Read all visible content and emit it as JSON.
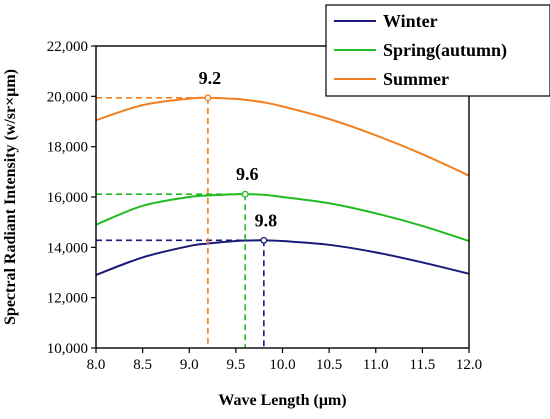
{
  "chart_data": {
    "type": "line",
    "title": "",
    "xlabel": "Wave Length (μm)",
    "ylabel": "Spectral Radiant Intensity (w/sr×μm)",
    "xlim": [
      8.0,
      12.0
    ],
    "ylim": [
      10000,
      22000
    ],
    "x_ticks": [
      8.0,
      8.5,
      9.0,
      9.5,
      10.0,
      10.5,
      11.0,
      11.5,
      12.0
    ],
    "x_tick_labels": [
      "8.0",
      "8.5",
      "9.0",
      "9.5",
      "10.0",
      "10.5",
      "11.0",
      "11.5",
      "12.0"
    ],
    "y_ticks": [
      10000,
      12000,
      14000,
      16000,
      18000,
      20000,
      22000
    ],
    "y_tick_labels": [
      "10,000",
      "12,000",
      "14,000",
      "16,000",
      "18,000",
      "20,000",
      "22,000"
    ],
    "grid": false,
    "legend_position": "top-right",
    "x": [
      8.0,
      8.5,
      9.0,
      9.2,
      9.5,
      9.6,
      9.8,
      10.0,
      10.5,
      11.0,
      11.5,
      12.0
    ],
    "series": [
      {
        "name": "Winter",
        "color": "#1a1a7a",
        "values": [
          12900,
          13600,
          14050,
          14150,
          14250,
          14270,
          14280,
          14250,
          14100,
          13800,
          13400,
          12950
        ],
        "peak": {
          "x": 9.8,
          "y": 14280,
          "label": "9.8"
        }
      },
      {
        "name": "Spring(autumn)",
        "color": "#22bb22",
        "values": [
          14900,
          15650,
          16000,
          16060,
          16110,
          16110,
          16090,
          16000,
          15750,
          15350,
          14850,
          14250
        ],
        "peak": {
          "x": 9.6,
          "y": 16110,
          "label": "9.6"
        }
      },
      {
        "name": "Summer",
        "color": "#f08020",
        "values": [
          19050,
          19650,
          19910,
          19940,
          19900,
          19860,
          19760,
          19600,
          19100,
          18450,
          17700,
          16850
        ],
        "peak": {
          "x": 9.2,
          "y": 19940,
          "label": "9.2"
        }
      }
    ]
  }
}
